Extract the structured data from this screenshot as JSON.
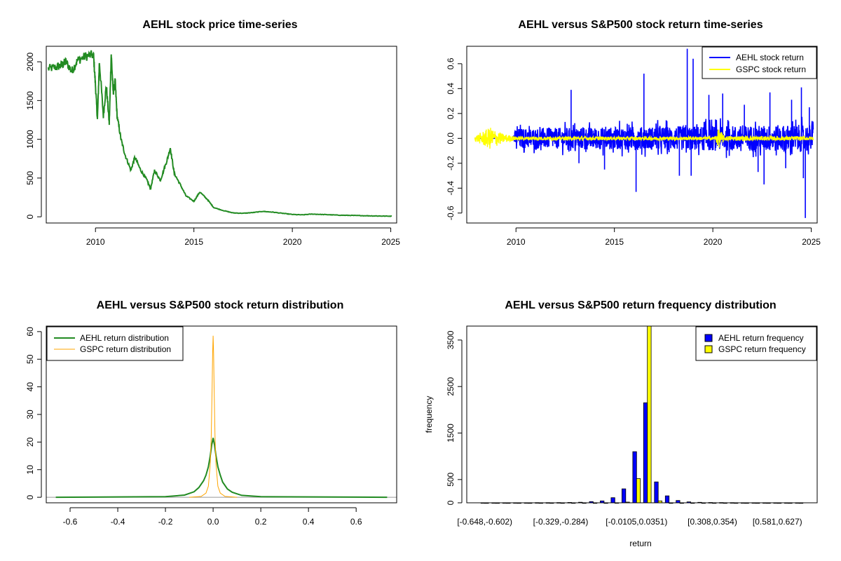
{
  "colors": {
    "price": "#228B22",
    "aehl_return": "#0000FF",
    "gspc_return": "#FFFF00",
    "aehl_density": "#228B22",
    "gspc_density": "#FFA500",
    "aehl_hist": "#0000FF",
    "gspc_hist": "#FFFF00"
  },
  "chart_data": [
    {
      "id": "price",
      "type": "line",
      "title": "AEHL stock price time-series",
      "xlabel": "",
      "ylabel": "",
      "xlim": [
        2007.5,
        2025.3
      ],
      "ylim": [
        -80,
        2200
      ],
      "xticks": [
        2010,
        2015,
        2020,
        2025
      ],
      "yticks": [
        0,
        500,
        1000,
        1500,
        2000
      ],
      "series": [
        {
          "x": [
            2007.6,
            2008.0,
            2008.3,
            2008.5,
            2008.8,
            2009.1,
            2009.5,
            2009.9,
            2010.0,
            2010.1,
            2010.2,
            2010.4,
            2010.55,
            2010.7,
            2010.8,
            2010.9,
            2011.0,
            2011.1,
            2011.3,
            2011.5,
            2011.8,
            2012.0,
            2012.3,
            2012.6,
            2012.8,
            2013.0,
            2013.3,
            2013.6,
            2013.8,
            2014.0,
            2014.3,
            2014.6,
            2015.0,
            2015.3,
            2015.7,
            2016.0,
            2016.5,
            2017.0,
            2017.5,
            2018.0,
            2018.5,
            2019.0,
            2019.5,
            2020.0,
            2020.5,
            2021.0,
            2021.5,
            2022.0,
            2022.5,
            2023.0,
            2023.5,
            2024.0,
            2024.5,
            2025.05
          ],
          "y": [
            1910,
            1930,
            1960,
            2000,
            1880,
            2020,
            2070,
            2090,
            1700,
            1250,
            2000,
            1300,
            1700,
            1200,
            2100,
            1600,
            1750,
            1300,
            1000,
            800,
            600,
            770,
            600,
            480,
            360,
            600,
            470,
            700,
            890,
            560,
            420,
            270,
            200,
            320,
            220,
            120,
            80,
            50,
            45,
            55,
            70,
            60,
            45,
            30,
            25,
            35,
            30,
            25,
            20,
            18,
            15,
            12,
            10,
            8
          ]
        }
      ]
    },
    {
      "id": "returns",
      "type": "line",
      "title": "AEHL versus S&P500 stock return time-series",
      "xlabel": "",
      "ylabel": "",
      "xlim": [
        2007.5,
        2025.3
      ],
      "ylim": [
        -0.68,
        0.74
      ],
      "xticks": [
        2010,
        2015,
        2020,
        2025
      ],
      "yticks": [
        -0.6,
        -0.4,
        -0.2,
        0.0,
        0.2,
        0.4,
        0.6
      ],
      "ytick_labels": [
        "-0.6",
        "-0.4",
        "-0.2",
        "0.0",
        "0.2",
        "0.4",
        "0.6"
      ],
      "legend": {
        "position": "top-right",
        "entries": [
          "AEHL stock return",
          "GSPC stock return"
        ]
      },
      "series": [
        {
          "name": "AEHL stock return",
          "amplitude_profile": {
            "x": [
              2007.9,
              2009.8,
              2010.0,
              2015.0,
              2020.0,
              2025.1
            ],
            "a": [
              0.0,
              0.0,
              0.08,
              0.09,
              0.1,
              0.11
            ]
          },
          "spikes": [
            [
              2012.8,
              0.39
            ],
            [
              2013.2,
              -0.2
            ],
            [
              2014.5,
              -0.25
            ],
            [
              2016.1,
              -0.43
            ],
            [
              2016.5,
              0.52
            ],
            [
              2018.3,
              -0.3
            ],
            [
              2018.7,
              0.72
            ],
            [
              2018.9,
              -0.3
            ],
            [
              2019.0,
              0.64
            ],
            [
              2019.8,
              0.35
            ],
            [
              2020.5,
              0.36
            ],
            [
              2021.6,
              0.27
            ],
            [
              2022.3,
              -0.27
            ],
            [
              2022.6,
              -0.37
            ],
            [
              2022.9,
              0.37
            ],
            [
              2023.7,
              -0.24
            ],
            [
              2024.0,
              0.31
            ],
            [
              2024.5,
              0.41
            ],
            [
              2024.6,
              -0.32
            ],
            [
              2024.7,
              -0.64
            ],
            [
              2024.9,
              0.25
            ]
          ]
        },
        {
          "name": "GSPC stock return",
          "amplitude_profile": {
            "x": [
              2007.9,
              2008.7,
              2009.3,
              2010.0,
              2020.1,
              2020.3,
              2020.6,
              2025.1
            ],
            "a": [
              0.02,
              0.09,
              0.04,
              0.015,
              0.015,
              0.08,
              0.02,
              0.015
            ]
          }
        }
      ]
    },
    {
      "id": "density",
      "type": "line",
      "title": "AEHL versus S&P500 stock return distribution",
      "xlabel": "",
      "ylabel": "",
      "xlim": [
        -0.7,
        0.77
      ],
      "ylim": [
        -2,
        62
      ],
      "xticks": [
        -0.6,
        -0.4,
        -0.2,
        0.0,
        0.2,
        0.4,
        0.6
      ],
      "xtick_labels": [
        "-0.6",
        "-0.4",
        "-0.2",
        "0.0",
        "0.2",
        "0.4",
        "0.6"
      ],
      "yticks": [
        0,
        10,
        20,
        30,
        40,
        50,
        60
      ],
      "legend": {
        "position": "top-left",
        "entries": [
          "AEHL return distribution",
          "GSPC return distribution"
        ]
      },
      "series": [
        {
          "name": "AEHL return distribution",
          "x": [
            -0.66,
            -0.2,
            -0.12,
            -0.08,
            -0.06,
            -0.04,
            -0.03,
            -0.02,
            -0.012,
            -0.006,
            0.0,
            0.006,
            0.012,
            0.02,
            0.03,
            0.04,
            0.06,
            0.08,
            0.12,
            0.2,
            0.73
          ],
          "y": [
            0,
            0.2,
            0.8,
            2,
            3.5,
            6,
            8,
            11,
            15,
            19,
            21.5,
            19,
            15,
            11,
            8,
            5.5,
            3,
            1.8,
            0.7,
            0.2,
            0
          ]
        },
        {
          "name": "GSPC return distribution",
          "x": [
            -0.1,
            -0.05,
            -0.03,
            -0.02,
            -0.012,
            -0.008,
            -0.004,
            -0.002,
            0.0,
            0.002,
            0.004,
            0.008,
            0.012,
            0.02,
            0.03,
            0.05,
            0.1
          ],
          "y": [
            0,
            0.3,
            1.5,
            4,
            12,
            22,
            40,
            52,
            58.5,
            52,
            40,
            22,
            12,
            4,
            1.5,
            0.3,
            0
          ]
        }
      ]
    },
    {
      "id": "hist",
      "type": "bar",
      "title": "AEHL versus S&P500 return frequency distribution",
      "xlabel": "return",
      "ylabel": "frequency",
      "ylim": [
        0,
        3800
      ],
      "yticks": [
        0,
        500,
        1500,
        2500,
        3500
      ],
      "x_tick_labels": [
        "[-0.648,-0.602)",
        "[-0.329,-0.284)",
        "[-0.0105,0.0351)",
        "[0.308,0.354)",
        "[0.581,0.627)"
      ],
      "x_tick_bin_index": [
        0,
        7,
        14,
        21,
        27
      ],
      "legend": {
        "position": "top-right",
        "entries": [
          "AEHL return frequency",
          "GSPC return frequency"
        ]
      },
      "bins": 30,
      "series": [
        {
          "name": "AEHL return frequency",
          "values": [
            1,
            1,
            1,
            2,
            2,
            3,
            3,
            4,
            8,
            12,
            25,
            40,
            110,
            300,
            1100,
            2150,
            450,
            150,
            50,
            20,
            10,
            6,
            4,
            3,
            2,
            2,
            1,
            1,
            1,
            1
          ]
        },
        {
          "name": "GSPC return frequency",
          "values": [
            0,
            0,
            0,
            0,
            0,
            0,
            0,
            0,
            0,
            0,
            0,
            0,
            2,
            15,
            520,
            3800,
            40,
            0,
            0,
            0,
            0,
            0,
            0,
            0,
            0,
            0,
            0,
            0,
            0,
            0
          ]
        }
      ]
    }
  ]
}
